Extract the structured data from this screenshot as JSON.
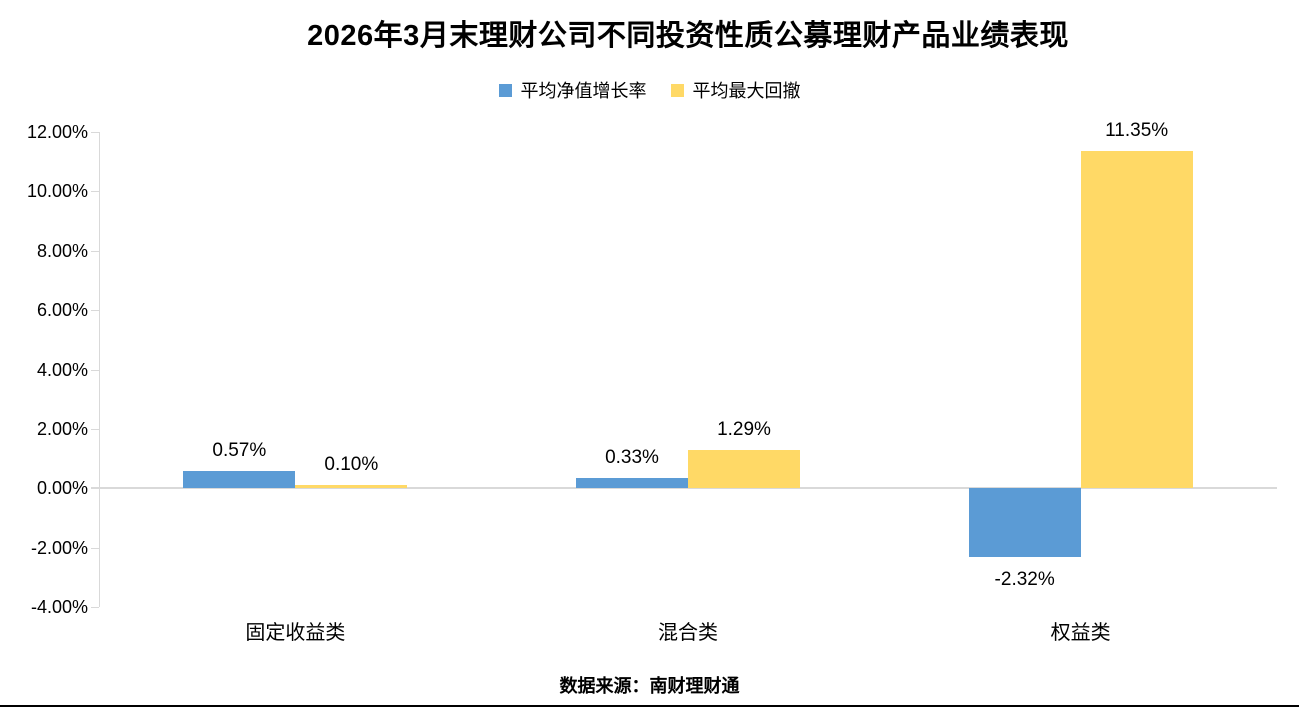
{
  "source_note": "数据来源：南财理财通",
  "colors": {
    "series1": "#5B9BD5",
    "series2": "#FFD966",
    "axis_line": "#D9D9D9",
    "text": "#000000"
  },
  "chart_data": {
    "type": "bar",
    "title": "2026年3月末理财公司不同投资性质公募理财产品业绩表现",
    "categories": [
      "固定收益类",
      "混合类",
      "权益类"
    ],
    "series": [
      {
        "name": "平均净值增长率",
        "color": "#5B9BD5",
        "values": [
          0.57,
          0.33,
          -2.32
        ],
        "data_labels": [
          "0.57%",
          "0.33%",
          "-2.32%"
        ]
      },
      {
        "name": "平均最大回撤",
        "color": "#FFD966",
        "values": [
          0.1,
          1.29,
          11.35
        ],
        "data_labels": [
          "0.10%",
          "1.29%",
          "11.35%"
        ]
      }
    ],
    "y_axis": {
      "min": -4,
      "max": 12,
      "step": 2,
      "tick_labels": [
        "12.00%",
        "10.00%",
        "8.00%",
        "6.00%",
        "4.00%",
        "2.00%",
        "0.00%",
        "-2.00%",
        "-4.00%"
      ]
    },
    "grid": false,
    "legend_position": "top",
    "xlabel": "",
    "ylabel": ""
  }
}
